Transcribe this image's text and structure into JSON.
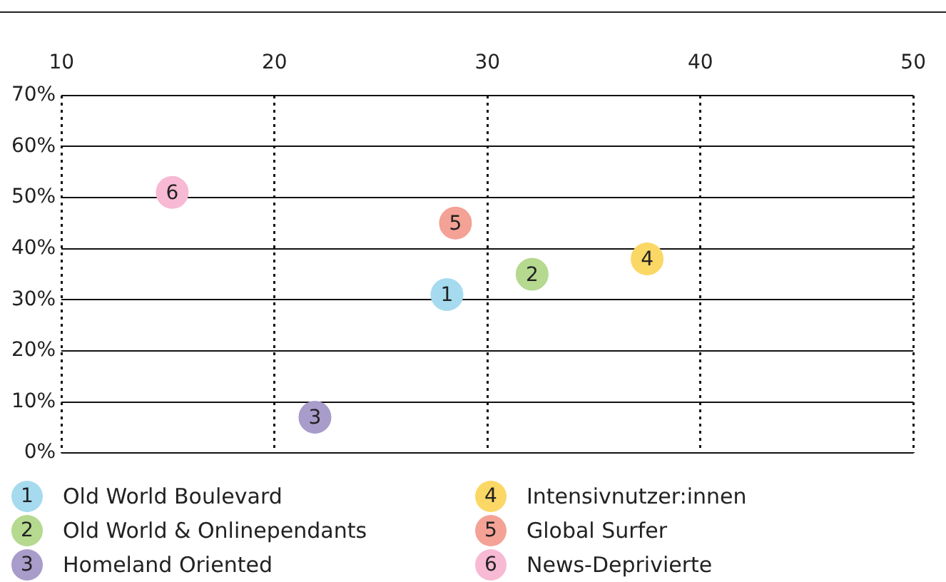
{
  "chart_data": {
    "type": "scatter",
    "series": [
      {
        "name": "Old World Boulevard",
        "color": "#a6dbef",
        "x": [
          28.1
        ],
        "values": [
          31
        ]
      },
      {
        "name": "Old World & Onlinependants",
        "color": "#b5d98f",
        "x": [
          32.1
        ],
        "values": [
          35
        ]
      },
      {
        "name": "Homeland Oriented",
        "color": "#a89ccb",
        "x": [
          21.9
        ],
        "values": [
          7
        ]
      },
      {
        "name": "Intensivnutzer:innen",
        "color": "#fbd766",
        "x": [
          37.5
        ],
        "values": [
          38
        ]
      },
      {
        "name": "Global Surfer",
        "color": "#f4a196",
        "x": [
          28.5
        ],
        "values": [
          45
        ]
      },
      {
        "name": "News-Deprivierte",
        "color": "#f7b9d3",
        "x": [
          15.2
        ],
        "values": [
          51
        ]
      }
    ],
    "annotations": [
      {
        "text": "1",
        "x": 28.1,
        "y": 31
      },
      {
        "text": "2",
        "x": 32.1,
        "y": 35
      },
      {
        "text": "3",
        "x": 21.9,
        "y": 7
      },
      {
        "text": "4",
        "x": 37.5,
        "y": 38
      },
      {
        "text": "5",
        "x": 28.5,
        "y": 45
      },
      {
        "text": "6",
        "x": 15.2,
        "y": 51
      }
    ],
    "xlim": [
      10,
      50
    ],
    "xticks": [
      10,
      20,
      30,
      40,
      50
    ],
    "ylim": [
      0,
      70
    ],
    "yticks": [
      {
        "value": 0,
        "label": "0%"
      },
      {
        "value": 10,
        "label": "10%"
      },
      {
        "value": 20,
        "label": "20%"
      },
      {
        "value": 30,
        "label": "30%"
      },
      {
        "value": 40,
        "label": "40%"
      },
      {
        "value": 50,
        "label": "50%"
      },
      {
        "value": 60,
        "label": "60%"
      },
      {
        "value": 70,
        "label": "70%"
      }
    ],
    "grid": true,
    "marker": "circle",
    "legend": "bottom"
  }
}
